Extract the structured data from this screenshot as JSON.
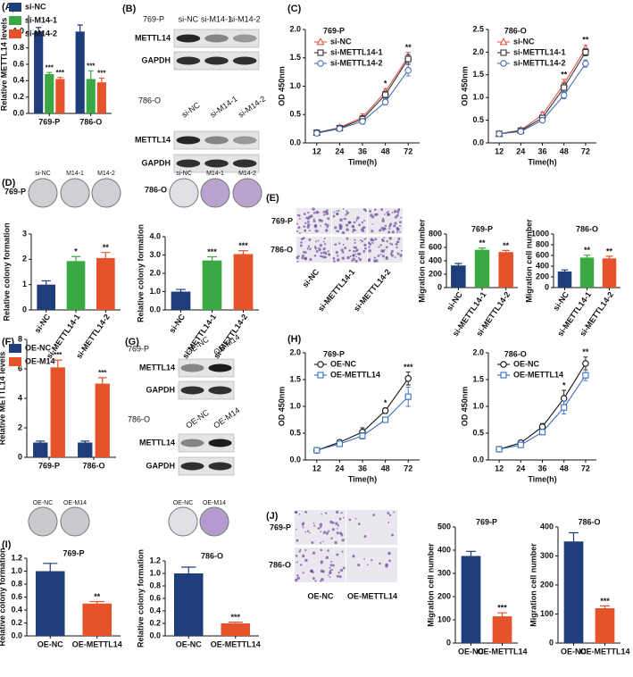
{
  "panel_labels": [
    "(A)",
    "(B)",
    "(C)",
    "(D)",
    "(E)",
    "(F)",
    "(G)",
    "(H)",
    "(I)",
    "(J)"
  ],
  "blots": [
    {
      "cell": "769-P",
      "lanes": [
        "si-NC",
        "si-M14-1",
        "si-M14-2"
      ],
      "bands": [
        "METTL14",
        "GAPDH"
      ]
    },
    {
      "cell": "786-O",
      "lanes": [
        "si-NC",
        "si-M14-1",
        "si-M14-2"
      ],
      "bands": [
        "METTL14",
        "GAPDH"
      ]
    },
    {
      "cell": "769-P",
      "lanes": [
        "OE-NC",
        "OE-M14"
      ],
      "bands": [
        "METTL14",
        "GAPDH"
      ]
    },
    {
      "cell": "786-O",
      "lanes": [
        "OE-NC",
        "OE-M14"
      ],
      "bands": [
        "METTL14",
        "GAPDH"
      ]
    }
  ],
  "colonies": [
    {
      "cell": "769-P",
      "wells": [
        "si-NC",
        "M14-1",
        "M14-2"
      ]
    },
    {
      "cell": "786-O",
      "wells": [
        "si-NC",
        "M14-1",
        "M14-2"
      ]
    },
    {
      "wells": [
        "OE-NC",
        "OE-M14"
      ]
    },
    {
      "wells": [
        "OE-NC",
        "OE-M14"
      ]
    }
  ],
  "transwell": [
    {
      "rows": [
        "769-P",
        "786-O"
      ],
      "columns": [
        "si-NC",
        "si-METTL14-1",
        "si-METTL14-2"
      ]
    },
    {
      "rows": [
        "769-P",
        "786-O"
      ],
      "columns": [
        "OE-NC",
        "OE-METTL14"
      ]
    }
  ],
  "chart_data": [
    {
      "type": "grouped_bar",
      "y_label": "Relative  METTL14 levels",
      "categories": [
        "769-P",
        "786-O"
      ],
      "series": [
        {
          "name": "si-NC",
          "color": "#1f3d7a",
          "values": [
            1.0,
            1.0
          ],
          "errors": [
            0.05,
            0.08
          ],
          "stars": [
            null,
            null
          ]
        },
        {
          "name": "si-M14-1",
          "color": "#3aa843",
          "values": [
            0.48,
            0.42
          ],
          "errors": [
            0.02,
            0.1
          ],
          "stars": [
            "***",
            "***"
          ]
        },
        {
          "name": "si-M14-2",
          "color": "#e5532b",
          "values": [
            0.42,
            0.38
          ],
          "errors": [
            0.02,
            0.05
          ],
          "stars": [
            "***",
            "***"
          ]
        }
      ],
      "ylim": [
        0,
        1.2
      ],
      "yticks": [
        {
          "value": 0,
          "label": "0.0"
        },
        0.2,
        0.4,
        0.6,
        0.8,
        {
          "value": 1,
          "label": "1.0"
        }
      ],
      "legend": "upper left"
    },
    {
      "type": "line",
      "title": "769-P",
      "x_label": "Time(h)",
      "y_label": "OD 450nm",
      "categories": [
        "12",
        "24",
        "36",
        "48",
        "72"
      ],
      "series": [
        {
          "name": "si-NC",
          "color": "#e05a4f",
          "marker": "triangle",
          "values": [
            0.18,
            0.27,
            0.45,
            0.9,
            1.52
          ],
          "errors": [
            0.02,
            0.03,
            0.06,
            0.06,
            0.08
          ]
        },
        {
          "name": "si-METTL14-1",
          "color": "#333333",
          "marker": "square",
          "values": [
            0.18,
            0.26,
            0.42,
            0.85,
            1.48
          ],
          "errors": [
            0.02,
            0.03,
            0.06,
            0.06,
            0.08
          ]
        },
        {
          "name": "si-METTL14-2",
          "color": "#4a6fb5",
          "marker": "circle",
          "values": [
            0.17,
            0.25,
            0.38,
            0.72,
            1.28
          ],
          "errors": [
            0.02,
            0.03,
            0.05,
            0.05,
            0.1
          ]
        }
      ],
      "stars": [
        null,
        null,
        null,
        "*",
        "**"
      ],
      "ylim": [
        0,
        2
      ],
      "yticks": [
        {
          "value": 0,
          "label": "0.0"
        },
        0.5,
        {
          "value": 1,
          "label": "1.0"
        },
        1.5,
        {
          "value": 2,
          "label": "2.0"
        }
      ],
      "legend": "upper left"
    },
    {
      "type": "line",
      "title": "786-O",
      "x_label": "Time(h)",
      "y_label": "OD 450nm",
      "categories": [
        "12",
        "24",
        "36",
        "48",
        "72"
      ],
      "series": [
        {
          "name": "si-NC",
          "color": "#e05a4f",
          "marker": "triangle",
          "values": [
            0.2,
            0.28,
            0.62,
            1.3,
            2.08
          ],
          "errors": [
            0.02,
            0.03,
            0.06,
            0.1,
            0.08
          ]
        },
        {
          "name": "si-METTL14-1",
          "color": "#333333",
          "marker": "square",
          "values": [
            0.2,
            0.27,
            0.55,
            1.22,
            2.0
          ],
          "errors": [
            0.02,
            0.03,
            0.05,
            0.1,
            0.08
          ]
        },
        {
          "name": "si-METTL14-2",
          "color": "#4a6fb5",
          "marker": "circle",
          "values": [
            0.2,
            0.25,
            0.5,
            1.05,
            1.75
          ],
          "errors": [
            0.02,
            0.03,
            0.05,
            0.08,
            0.08
          ]
        }
      ],
      "stars": [
        null,
        null,
        null,
        "**",
        "**"
      ],
      "ylim": [
        0,
        2.5
      ],
      "yticks": [
        {
          "value": 0,
          "label": "0.0"
        },
        0.5,
        {
          "value": 1,
          "label": "1.0"
        },
        1.5,
        {
          "value": 2,
          "label": "2.0"
        },
        2.5
      ],
      "legend": "upper left"
    },
    {
      "type": "bar",
      "y_label": "Relative colony formation",
      "categories": [
        "si-NC",
        "si-METTL14-1",
        "si-METTL14-2"
      ],
      "values": [
        1.0,
        1.93,
        2.05
      ],
      "errors": [
        0.15,
        0.18,
        0.22
      ],
      "stars": [
        null,
        "*",
        "**"
      ],
      "colors": [
        "#1f3d7a",
        "#3aa843",
        "#e5532b"
      ],
      "ylim": [
        0,
        3
      ],
      "yticks": [
        0,
        1,
        2,
        3
      ]
    },
    {
      "type": "bar",
      "y_label": "Relative colony formation",
      "categories": [
        "si-NC",
        "si-METTL14-1",
        "si-METTL14-2"
      ],
      "values": [
        1.0,
        2.7,
        3.05
      ],
      "errors": [
        0.12,
        0.2,
        0.18
      ],
      "stars": [
        null,
        "***",
        "***"
      ],
      "colors": [
        "#1f3d7a",
        "#3aa843",
        "#e5532b"
      ],
      "ylim": [
        0,
        4
      ],
      "yticks": [
        {
          "value": 0,
          "label": "0.0"
        },
        {
          "value": 1,
          "label": "1.0"
        },
        {
          "value": 2,
          "label": "2.0"
        },
        {
          "value": 3,
          "label": "3.0"
        },
        {
          "value": 4,
          "label": "4.0"
        }
      ]
    },
    {
      "type": "bar",
      "title": "769-P",
      "y_label": "Migration cell number",
      "categories": [
        "si-NC",
        "si-METTL14-1",
        "si-METTL14-2"
      ],
      "values": [
        330,
        565,
        530
      ],
      "errors": [
        30,
        25,
        25
      ],
      "stars": [
        null,
        "**",
        "**"
      ],
      "colors": [
        "#1f3d7a",
        "#3aa843",
        "#e5532b"
      ],
      "ylim": [
        0,
        800
      ],
      "yticks": [
        0,
        200,
        400,
        600,
        800
      ]
    },
    {
      "type": "bar",
      "title": "786-O",
      "y_label": "Migration cell number",
      "categories": [
        "si-NC",
        "si-METTL14-1",
        "si-METTL14-2"
      ],
      "values": [
        300,
        560,
        545
      ],
      "errors": [
        30,
        45,
        40
      ],
      "stars": [
        null,
        "**",
        "**"
      ],
      "colors": [
        "#1f3d7a",
        "#3aa843",
        "#e5532b"
      ],
      "ylim": [
        0,
        1000
      ],
      "yticks": [
        0,
        200,
        400,
        600,
        800,
        1000
      ]
    },
    {
      "type": "grouped_bar",
      "y_label": "Relative  METTL14 levels",
      "categories": [
        "769-P",
        "786-O"
      ],
      "series": [
        {
          "name": "OE-NC",
          "color": "#1f3d7a",
          "values": [
            1.0,
            1.0
          ],
          "errors": [
            0.1,
            0.1
          ],
          "stars": [
            null,
            null
          ]
        },
        {
          "name": "OE-M14",
          "color": "#e5532b",
          "values": [
            6.1,
            5.0
          ],
          "errors": [
            0.5,
            0.4
          ],
          "stars": [
            "***",
            "***"
          ]
        }
      ],
      "ylim": [
        0,
        8
      ],
      "yticks": [
        0,
        2,
        4,
        6,
        8
      ],
      "legend": "upper left"
    },
    {
      "type": "line",
      "title": "769-P",
      "x_label": "Time(h)",
      "y_label": "OD 450nm",
      "categories": [
        "12",
        "24",
        "36",
        "48",
        "72"
      ],
      "series": [
        {
          "name": "OE-NC",
          "color": "#111111",
          "marker": "circle",
          "values": [
            0.18,
            0.33,
            0.52,
            0.92,
            1.52
          ],
          "errors": [
            0.02,
            0.04,
            0.08,
            0.05,
            0.12
          ]
        },
        {
          "name": "OE-METTL14",
          "color": "#3a6fc4",
          "marker": "square",
          "values": [
            0.18,
            0.3,
            0.45,
            0.75,
            1.18
          ],
          "errors": [
            0.02,
            0.03,
            0.06,
            0.03,
            0.18
          ]
        }
      ],
      "stars": [
        null,
        null,
        null,
        "*",
        "***"
      ],
      "ylim": [
        0,
        2
      ],
      "yticks": [
        {
          "value": 0,
          "label": "0.0"
        },
        0.5,
        {
          "value": 1,
          "label": "1.0"
        },
        1.5,
        {
          "value": 2,
          "label": "2.0"
        }
      ],
      "legend": "upper left"
    },
    {
      "type": "line",
      "title": "786-O",
      "x_label": "Time(h)",
      "y_label": "OD 450nm",
      "categories": [
        "12",
        "24",
        "36",
        "48",
        "72"
      ],
      "series": [
        {
          "name": "OE-NC",
          "color": "#111111",
          "marker": "circle",
          "values": [
            0.2,
            0.32,
            0.62,
            1.15,
            1.8
          ],
          "errors": [
            0.02,
            0.03,
            0.06,
            0.15,
            0.12
          ]
        },
        {
          "name": "OE-METTL14",
          "color": "#3a6fc4",
          "marker": "square",
          "values": [
            0.2,
            0.28,
            0.52,
            0.98,
            1.58
          ],
          "errors": [
            0.02,
            0.03,
            0.05,
            0.12,
            0.1
          ]
        }
      ],
      "stars": [
        null,
        null,
        null,
        "*",
        "**"
      ],
      "ylim": [
        0,
        2
      ],
      "yticks": [
        {
          "value": 0,
          "label": "0.0"
        },
        0.5,
        {
          "value": 1,
          "label": "1.0"
        },
        1.5,
        {
          "value": 2,
          "label": "2.0"
        }
      ],
      "legend": "upper left"
    },
    {
      "type": "bar",
      "title": "769-P",
      "y_label": "Relative colony formation",
      "categories": [
        "OE-NC",
        "OE-METTL14"
      ],
      "values": [
        1.0,
        0.5
      ],
      "errors": [
        0.12,
        0.03
      ],
      "stars": [
        null,
        "**"
      ],
      "colors": [
        "#1f3d7a",
        "#e5532b"
      ],
      "ylim": [
        0,
        1.2
      ],
      "yticks": [
        {
          "value": 0,
          "label": "0.0"
        },
        0.2,
        0.4,
        0.6,
        0.8,
        {
          "value": 1,
          "label": "1.0"
        },
        1.2
      ]
    },
    {
      "type": "bar",
      "title": "786-O",
      "y_label": "Relative colony formation",
      "categories": [
        "OE-NC",
        "OE-METTL14"
      ],
      "values": [
        1.0,
        0.2
      ],
      "errors": [
        0.1,
        0.02
      ],
      "stars": [
        null,
        "***"
      ],
      "colors": [
        "#1f3d7a",
        "#e5532b"
      ],
      "ylim": [
        0,
        1.2
      ],
      "yticks": [
        {
          "value": 0,
          "label": "0.0"
        },
        0.2,
        0.4,
        0.6,
        0.8,
        {
          "value": 1,
          "label": "1.0"
        },
        1.2
      ]
    },
    {
      "type": "bar",
      "title": "769-P",
      "y_label": "Migration cell number",
      "categories": [
        "OE-NC",
        "OE-METTL14"
      ],
      "values": [
        375,
        115
      ],
      "errors": [
        20,
        15
      ],
      "stars": [
        null,
        "***"
      ],
      "colors": [
        "#1f3d7a",
        "#e5532b"
      ],
      "ylim": [
        0,
        500
      ],
      "yticks": [
        0,
        100,
        200,
        300,
        400,
        500
      ]
    },
    {
      "type": "bar",
      "title": "786-O",
      "y_label": "Migration cell number",
      "categories": [
        "OE-NC",
        "OE-METTL14"
      ],
      "values": [
        350,
        120
      ],
      "errors": [
        30,
        8
      ],
      "stars": [
        null,
        "***"
      ],
      "colors": [
        "#1f3d7a",
        "#e5532b"
      ],
      "ylim": [
        0,
        400
      ],
      "yticks": [
        0,
        100,
        200,
        300,
        400
      ]
    }
  ]
}
